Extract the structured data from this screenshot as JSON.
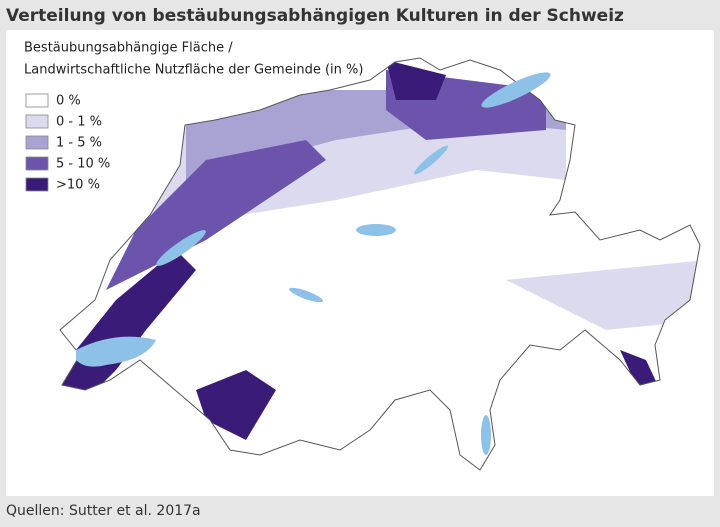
{
  "title": "Verteilung von bestäubungsabhängigen Kulturen in der Schweiz",
  "legend": {
    "title": [
      "Bestäubungsabhängige Fläche /",
      "Landwirtschaftliche Nutzfläche der Gemeinde (in %)"
    ],
    "items": [
      {
        "label": "0 %",
        "color": "#ffffff"
      },
      {
        "label": "0 - 1 %",
        "color": "#dcdaee"
      },
      {
        "label": "1 - 5 %",
        "color": "#a9a3d3"
      },
      {
        "label": "5 - 10 %",
        "color": "#6c53ab"
      },
      {
        "label": ">10 %",
        "color": "#3a1c78"
      }
    ]
  },
  "source": "Quellen: Sutter et al. 2017a"
}
